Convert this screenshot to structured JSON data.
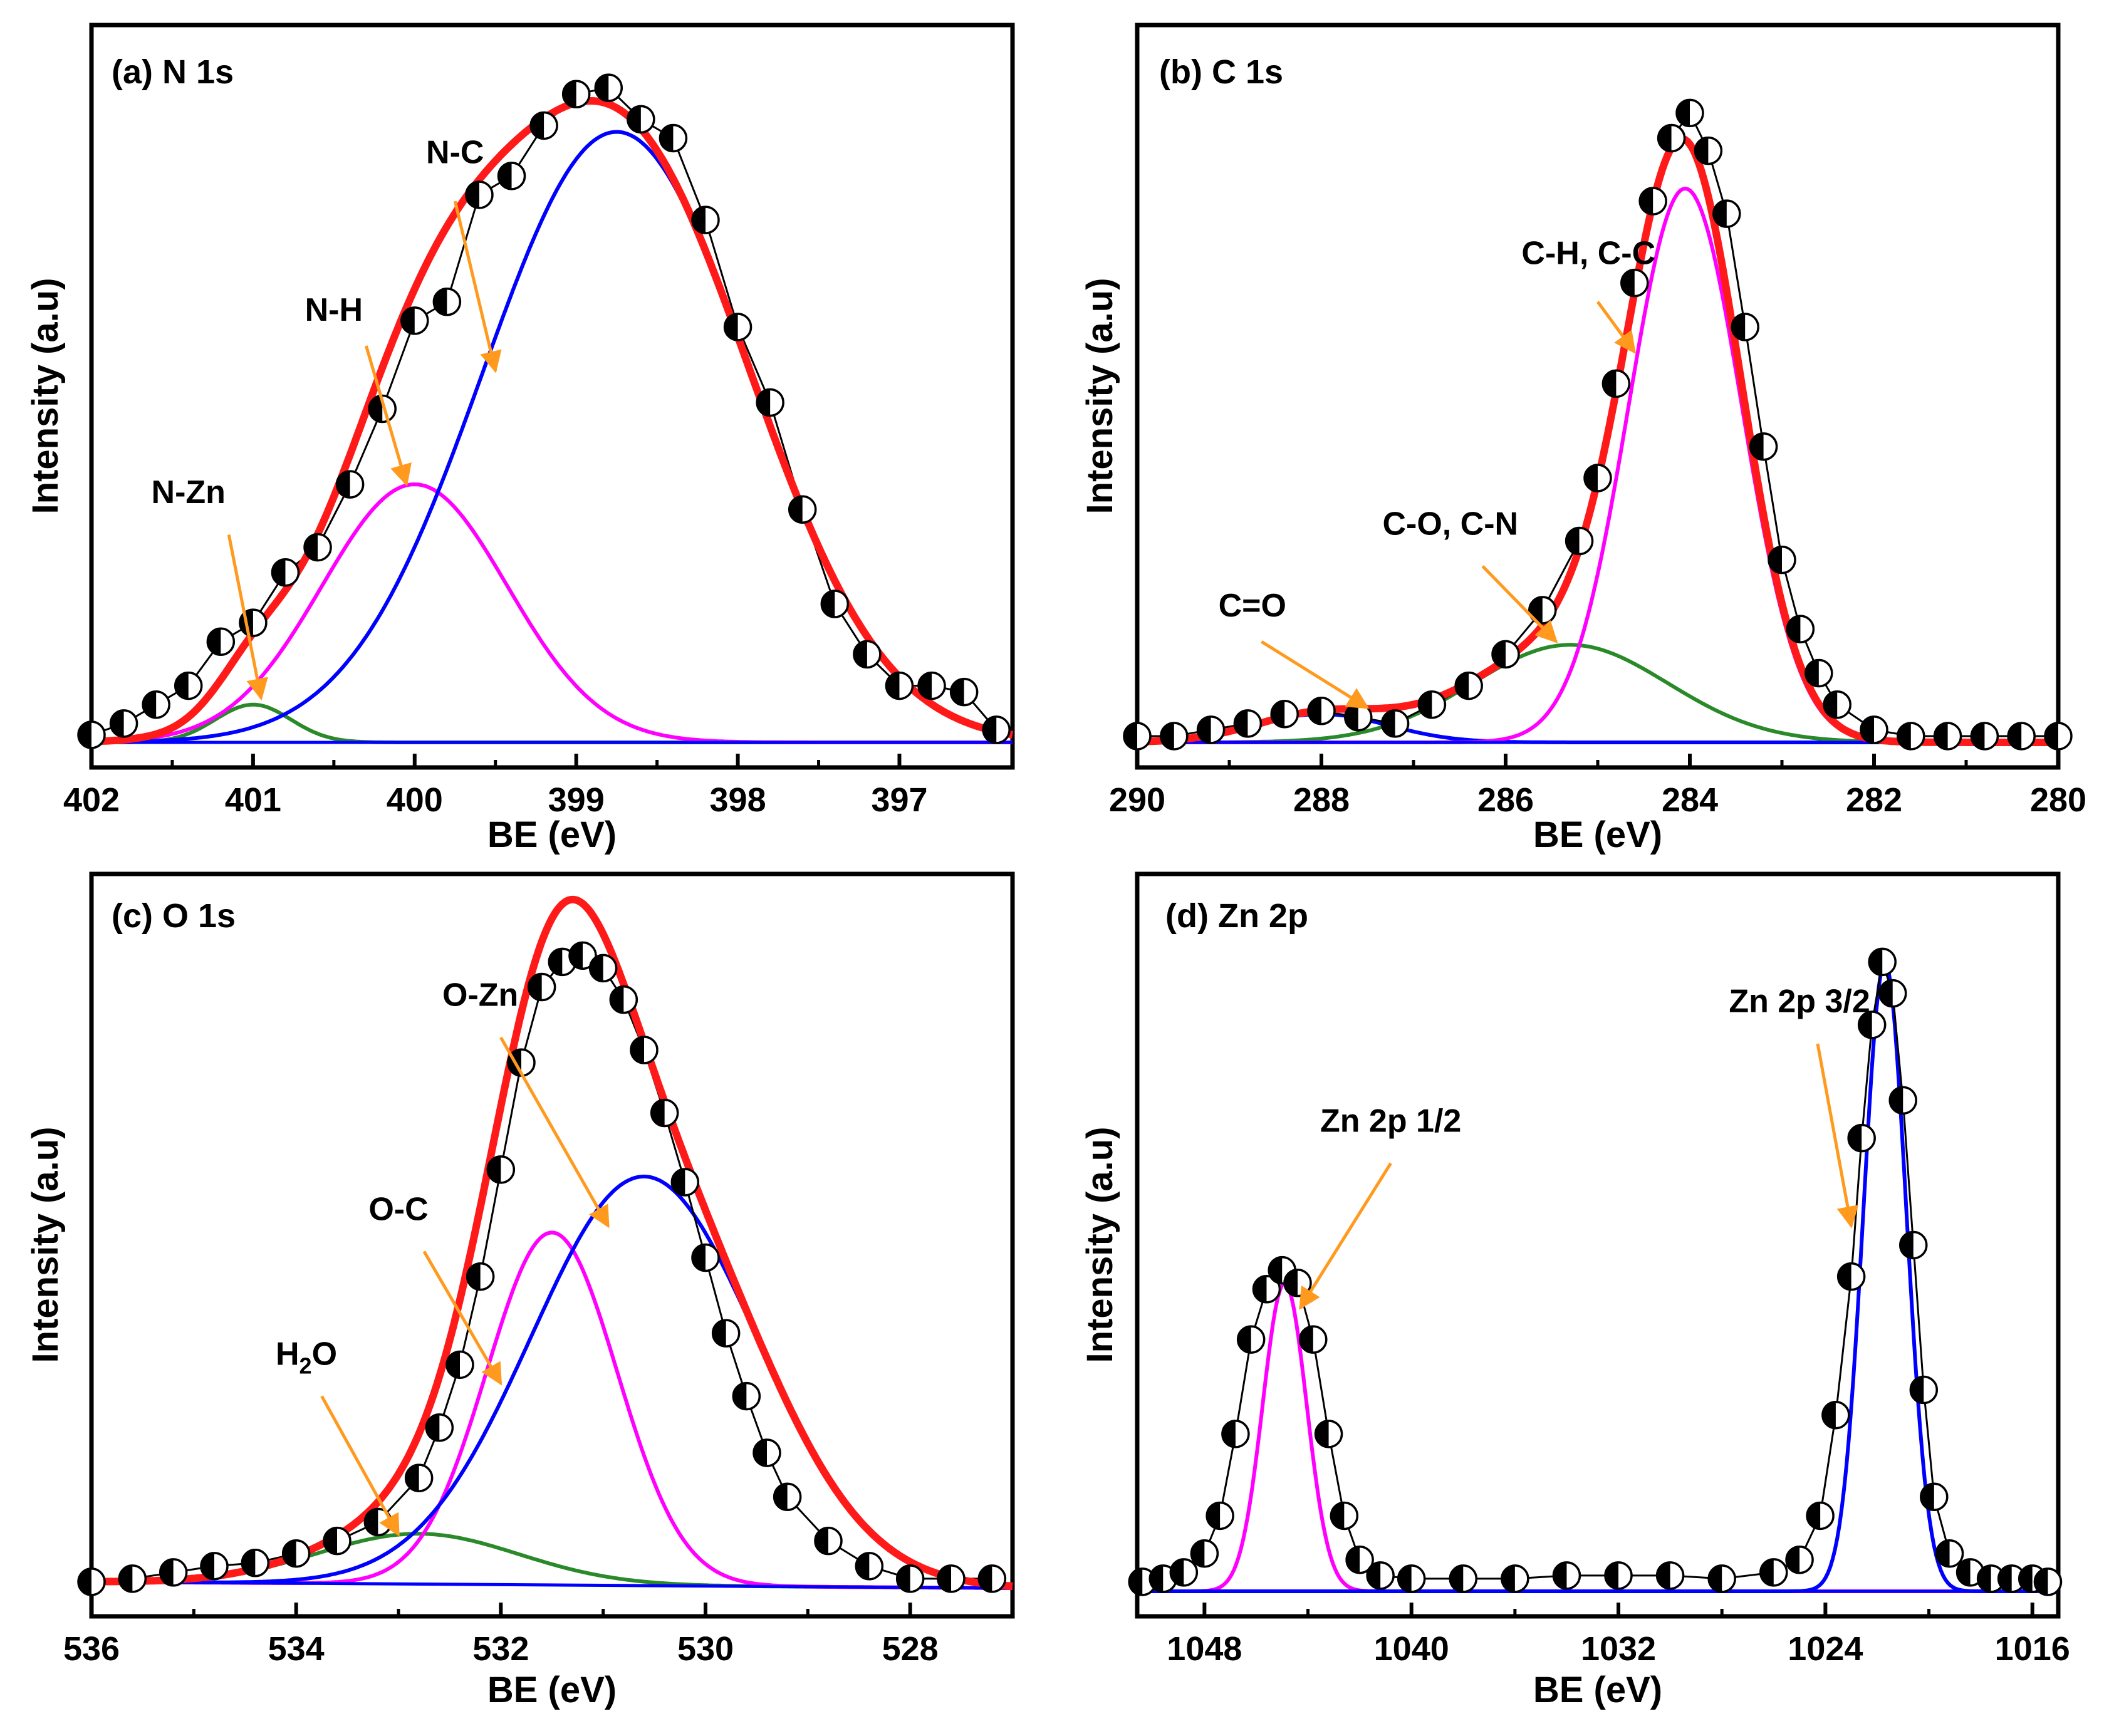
{
  "chart_data": [
    {
      "id": "a",
      "type": "line",
      "title": "(a) N 1s",
      "xlabel": "BE (eV)",
      "ylabel": "Intensity (a.u)",
      "x_reversed": true,
      "xlim": [
        396.3,
        402.0
      ],
      "ylim": [
        0,
        1.08
      ],
      "xticks": [
        402,
        401,
        400,
        399,
        398,
        397
      ],
      "xtick_labels": [
        "402",
        "401",
        "400",
        "399",
        "398",
        "397"
      ],
      "components": [
        {
          "name": "N-Zn",
          "color": "#2a8a2a",
          "center": 401.0,
          "height": 0.06,
          "fwhm": 0.55
        },
        {
          "name": "N-H",
          "color": "#ff00ff",
          "center": 400.0,
          "height": 0.41,
          "fwhm": 1.35
        },
        {
          "name": "N-C",
          "color": "#0000ff",
          "center": 398.75,
          "height": 0.97,
          "fwhm": 1.95
        }
      ],
      "background": [
        0.0,
        0.0
      ],
      "data_points": [
        [
          402.0,
          0.012
        ],
        [
          401.8,
          0.03
        ],
        [
          401.6,
          0.06
        ],
        [
          401.4,
          0.09
        ],
        [
          401.2,
          0.16
        ],
        [
          401.0,
          0.19
        ],
        [
          400.8,
          0.27
        ],
        [
          400.6,
          0.31
        ],
        [
          400.4,
          0.41
        ],
        [
          400.2,
          0.53
        ],
        [
          400.0,
          0.67
        ],
        [
          399.8,
          0.7
        ],
        [
          399.6,
          0.87
        ],
        [
          399.4,
          0.9
        ],
        [
          399.2,
          0.98
        ],
        [
          399.0,
          1.03
        ],
        [
          398.8,
          1.04
        ],
        [
          398.6,
          0.99
        ],
        [
          398.4,
          0.96
        ],
        [
          398.2,
          0.83
        ],
        [
          398.0,
          0.66
        ],
        [
          397.8,
          0.54
        ],
        [
          397.6,
          0.37
        ],
        [
          397.4,
          0.22
        ],
        [
          397.2,
          0.14
        ],
        [
          397.0,
          0.09
        ],
        [
          396.8,
          0.09
        ],
        [
          396.6,
          0.08
        ],
        [
          396.4,
          0.02
        ]
      ],
      "annotations": [
        {
          "label": "N-Zn",
          "text": [
            401.4,
            0.38
          ],
          "arrow_from": [
            401.15,
            0.33
          ],
          "arrow_to": [
            400.95,
            0.07
          ]
        },
        {
          "label": "N-H",
          "text": [
            400.5,
            0.67
          ],
          "arrow_from": [
            400.3,
            0.63
          ],
          "arrow_to": [
            400.05,
            0.41
          ]
        },
        {
          "label": "N-C",
          "text": [
            399.75,
            0.92
          ],
          "arrow_from": [
            399.75,
            0.86
          ],
          "arrow_to": [
            399.5,
            0.59
          ]
        }
      ]
    },
    {
      "id": "b",
      "type": "line",
      "title": "(b) C 1s",
      "xlabel": "BE (eV)",
      "ylabel": "Intensity (a.u)",
      "x_reversed": true,
      "xlim": [
        280,
        290
      ],
      "ylim": [
        0,
        1.08
      ],
      "xticks": [
        290,
        288,
        286,
        284,
        282,
        280
      ],
      "xtick_labels": [
        "290",
        "288",
        "286",
        "284",
        "282",
        "280"
      ],
      "components": [
        {
          "name": "C=O",
          "color": "#0000ff",
          "center": 288.0,
          "height": 0.045,
          "fwhm": 1.7
        },
        {
          "name": "C-O, C-N",
          "color": "#2a8a2a",
          "center": 285.3,
          "height": 0.155,
          "fwhm": 2.5
        },
        {
          "name": "C-H, C-C",
          "color": "#ff00ff",
          "center": 284.05,
          "height": 0.88,
          "fwhm": 1.45
        }
      ],
      "background": [
        0.0,
        0.0
      ],
      "data_points": [
        [
          290.0,
          0.01
        ],
        [
          289.6,
          0.01
        ],
        [
          289.2,
          0.02
        ],
        [
          288.8,
          0.03
        ],
        [
          288.4,
          0.045
        ],
        [
          288.0,
          0.05
        ],
        [
          287.6,
          0.04
        ],
        [
          287.2,
          0.03
        ],
        [
          286.8,
          0.06
        ],
        [
          286.4,
          0.09
        ],
        [
          286.0,
          0.14
        ],
        [
          285.6,
          0.21
        ],
        [
          285.2,
          0.32
        ],
        [
          285.0,
          0.42
        ],
        [
          284.8,
          0.57
        ],
        [
          284.6,
          0.73
        ],
        [
          284.4,
          0.86
        ],
        [
          284.2,
          0.96
        ],
        [
          284.0,
          1.0
        ],
        [
          283.8,
          0.94
        ],
        [
          283.6,
          0.84
        ],
        [
          283.4,
          0.66
        ],
        [
          283.2,
          0.47
        ],
        [
          283.0,
          0.29
        ],
        [
          282.8,
          0.18
        ],
        [
          282.6,
          0.11
        ],
        [
          282.4,
          0.06
        ],
        [
          282.0,
          0.02
        ],
        [
          281.6,
          0.01
        ],
        [
          281.2,
          0.01
        ],
        [
          280.8,
          0.01
        ],
        [
          280.4,
          0.01
        ],
        [
          280.0,
          0.01
        ]
      ],
      "annotations": [
        {
          "label": "C=O",
          "text": [
            288.75,
            0.2
          ],
          "arrow_from": [
            288.65,
            0.16
          ],
          "arrow_to": [
            287.5,
            0.055
          ]
        },
        {
          "label": "C-O, C-N",
          "text": [
            286.6,
            0.33
          ],
          "arrow_from": [
            286.25,
            0.28
          ],
          "arrow_to": [
            285.45,
            0.16
          ]
        },
        {
          "label": "C-H, C-C",
          "text": [
            285.1,
            0.76
          ],
          "arrow_from": [
            285.0,
            0.7
          ],
          "arrow_to": [
            284.6,
            0.62
          ]
        }
      ]
    },
    {
      "id": "c",
      "type": "line",
      "title": "(c) O 1s",
      "xlabel": "BE (eV)",
      "ylabel": "Intensity (a.u)",
      "x_reversed": true,
      "xlim": [
        527.0,
        536.0
      ],
      "ylim": [
        0,
        1.08
      ],
      "xticks": [
        536,
        534,
        532,
        530,
        528
      ],
      "xtick_labels": [
        "536",
        "534",
        "532",
        "530",
        "528"
      ],
      "components": [
        {
          "name": "H2O",
          "color": "#2a8a2a",
          "center": 532.8,
          "height": 0.08,
          "fwhm": 2.3
        },
        {
          "name": "O-C",
          "color": "#ff00ff",
          "center": 531.5,
          "height": 0.56,
          "fwhm": 1.5
        },
        {
          "name": "O-Zn",
          "color": "#0000ff",
          "center": 530.6,
          "height": 0.65,
          "fwhm": 2.6
        }
      ],
      "background": [
        0.015,
        0.005
      ],
      "data_points": [
        [
          536.0,
          0.015
        ],
        [
          535.6,
          0.02
        ],
        [
          535.2,
          0.03
        ],
        [
          534.8,
          0.04
        ],
        [
          534.4,
          0.045
        ],
        [
          534.0,
          0.06
        ],
        [
          533.6,
          0.08
        ],
        [
          533.2,
          0.11
        ],
        [
          532.8,
          0.18
        ],
        [
          532.6,
          0.26
        ],
        [
          532.4,
          0.36
        ],
        [
          532.2,
          0.5
        ],
        [
          532.0,
          0.67
        ],
        [
          531.8,
          0.84
        ],
        [
          531.6,
          0.96
        ],
        [
          531.4,
          1.0
        ],
        [
          531.2,
          1.01
        ],
        [
          531.0,
          0.99
        ],
        [
          530.8,
          0.94
        ],
        [
          530.6,
          0.86
        ],
        [
          530.4,
          0.76
        ],
        [
          530.2,
          0.65
        ],
        [
          530.0,
          0.53
        ],
        [
          529.8,
          0.41
        ],
        [
          529.6,
          0.31
        ],
        [
          529.4,
          0.22
        ],
        [
          529.2,
          0.15
        ],
        [
          528.8,
          0.08
        ],
        [
          528.4,
          0.04
        ],
        [
          528.0,
          0.02
        ],
        [
          527.6,
          0.02
        ],
        [
          527.2,
          0.02
        ]
      ],
      "annotations": [
        {
          "label": "H2O",
          "label_main": "H",
          "label_sub": "2",
          "label_tail": "O",
          "text": [
            533.9,
            0.36
          ],
          "arrow_from": [
            533.75,
            0.31
          ],
          "arrow_to": [
            533.0,
            0.09
          ]
        },
        {
          "label": "O-C",
          "text": [
            533.0,
            0.59
          ],
          "arrow_from": [
            532.75,
            0.54
          ],
          "arrow_to": [
            532.0,
            0.33
          ]
        },
        {
          "label": "O-Zn",
          "text": [
            532.2,
            0.93
          ],
          "arrow_from": [
            532.0,
            0.88
          ],
          "arrow_to": [
            530.95,
            0.58
          ]
        }
      ]
    },
    {
      "id": "d",
      "type": "line",
      "title": "(d) Zn 2p",
      "xlabel": "BE (eV)",
      "ylabel": "Intensity (a.u)",
      "x_reversed": true,
      "xlim": [
        1015.0,
        1050.6
      ],
      "ylim": [
        0,
        1.08
      ],
      "xticks": [
        1048,
        1040,
        1032,
        1024,
        1016
      ],
      "xtick_labels": [
        "1048",
        "1040",
        "1032",
        "1024",
        "1016"
      ],
      "components": [
        {
          "name": "Zn 2p 1/2",
          "color": "#ff00ff",
          "center": 1044.9,
          "height": 0.49,
          "fwhm": 2.0
        },
        {
          "name": "Zn 2p 3/2",
          "color": "#0000ff",
          "center": 1021.7,
          "height": 1.0,
          "fwhm": 1.95
        }
      ],
      "background": [
        0.0,
        0.0
      ],
      "data_points": [
        [
          1050.4,
          0.015
        ],
        [
          1049.6,
          0.02
        ],
        [
          1048.8,
          0.03
        ],
        [
          1048.0,
          0.06
        ],
        [
          1047.4,
          0.12
        ],
        [
          1046.8,
          0.25
        ],
        [
          1046.2,
          0.4
        ],
        [
          1045.6,
          0.48
        ],
        [
          1045.0,
          0.51
        ],
        [
          1044.4,
          0.49
        ],
        [
          1043.8,
          0.4
        ],
        [
          1043.2,
          0.25
        ],
        [
          1042.6,
          0.12
        ],
        [
          1042.0,
          0.05
        ],
        [
          1041.2,
          0.025
        ],
        [
          1040.0,
          0.02
        ],
        [
          1038.0,
          0.02
        ],
        [
          1036.0,
          0.02
        ],
        [
          1034.0,
          0.025
        ],
        [
          1032.0,
          0.025
        ],
        [
          1030.0,
          0.025
        ],
        [
          1028.0,
          0.02
        ],
        [
          1026.0,
          0.03
        ],
        [
          1025.0,
          0.05
        ],
        [
          1024.2,
          0.12
        ],
        [
          1023.6,
          0.28
        ],
        [
          1023.0,
          0.5
        ],
        [
          1022.6,
          0.72
        ],
        [
          1022.2,
          0.9
        ],
        [
          1021.8,
          1.0
        ],
        [
          1021.4,
          0.95
        ],
        [
          1021.0,
          0.78
        ],
        [
          1020.6,
          0.55
        ],
        [
          1020.2,
          0.32
        ],
        [
          1019.8,
          0.15
        ],
        [
          1019.2,
          0.06
        ],
        [
          1018.4,
          0.03
        ],
        [
          1017.6,
          0.02
        ],
        [
          1016.8,
          0.02
        ],
        [
          1016.0,
          0.02
        ],
        [
          1015.4,
          0.015
        ]
      ],
      "annotations": [
        {
          "label": "Zn 2p 1/2",
          "text": [
            1040.8,
            0.73
          ],
          "arrow_from": [
            1040.8,
            0.68
          ],
          "arrow_to": [
            1044.3,
            0.45
          ]
        },
        {
          "label": "Zn 2p 3/2",
          "text": [
            1025.0,
            0.92
          ],
          "arrow_from": [
            1024.3,
            0.87
          ],
          "arrow_to": [
            1023.0,
            0.58
          ]
        }
      ]
    }
  ]
}
